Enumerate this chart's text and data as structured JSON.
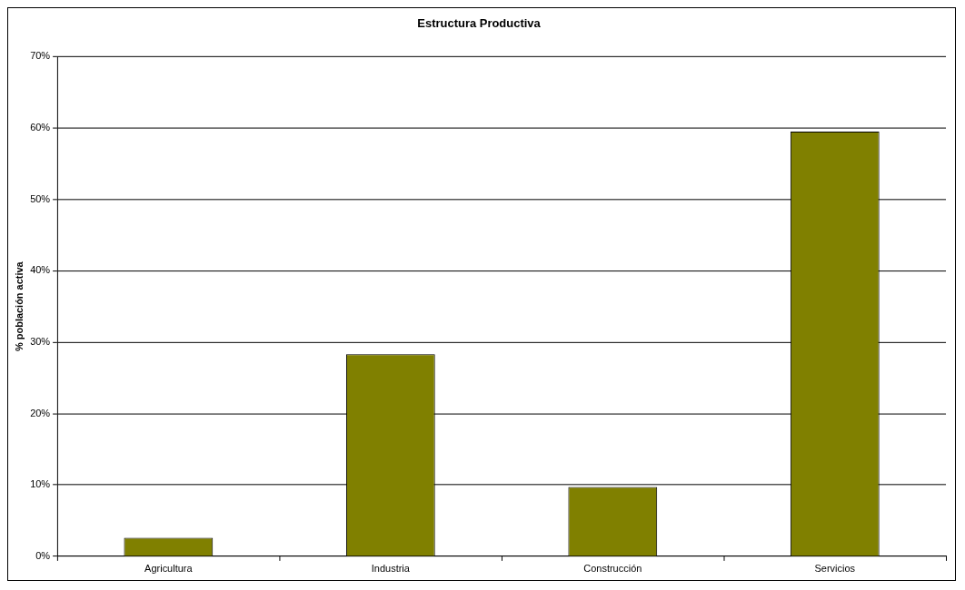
{
  "chart_data": {
    "type": "bar",
    "title": "Estructura Productiva",
    "ylabel": "% población activa",
    "categories": [
      "Agricultura",
      "Industria",
      "Construcción",
      "Servicios"
    ],
    "values": [
      2.6,
      28.3,
      9.7,
      59.5
    ],
    "color": "#808000",
    "ylim": [
      0,
      70
    ],
    "yticks": [
      {
        "value": 0,
        "label": "0%"
      },
      {
        "value": 10,
        "label": "10%"
      },
      {
        "value": 20,
        "label": "20%"
      },
      {
        "value": 30,
        "label": "30%"
      },
      {
        "value": 40,
        "label": "40%"
      },
      {
        "value": 50,
        "label": "50%"
      },
      {
        "value": 60,
        "label": "60%"
      },
      {
        "value": 70,
        "label": "70%"
      }
    ],
    "grid": "y",
    "legend": false
  }
}
